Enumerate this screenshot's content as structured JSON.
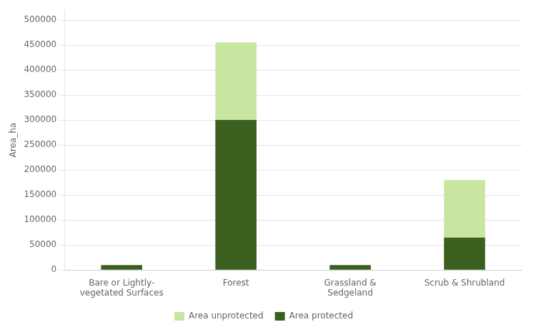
{
  "chart_data": {
    "type": "bar",
    "stacked": true,
    "categories": [
      "Bare or Lightly-\nvegetated Surfaces",
      "Forest",
      "Grassland &\nSedgeland",
      "Scrub & Shrubland"
    ],
    "series": [
      {
        "name": "Area protected",
        "color": "#3a5f1e",
        "values": [
          10000,
          300000,
          10000,
          65000
        ]
      },
      {
        "name": "Area unprotected",
        "color": "#c8e6a0",
        "values": [
          0,
          155000,
          0,
          115000
        ]
      }
    ],
    "ylabel": "Area_ha",
    "ylim": [
      0,
      520000
    ],
    "yticks": [
      0,
      50000,
      100000,
      150000,
      200000,
      250000,
      300000,
      350000,
      400000,
      450000,
      500000
    ],
    "grid": true,
    "legend": "bottom"
  }
}
